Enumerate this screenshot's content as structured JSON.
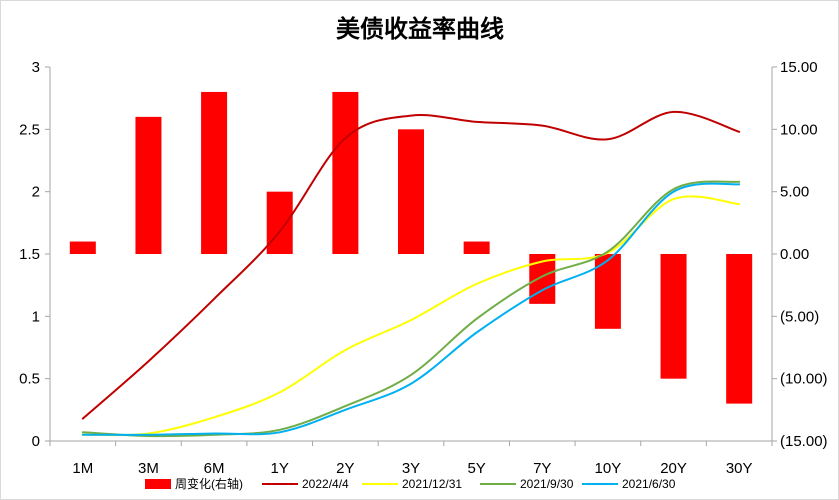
{
  "chart_data": {
    "type": "bar",
    "title": "美债收益率曲线",
    "categories": [
      "1M",
      "3M",
      "6M",
      "1Y",
      "2Y",
      "3Y",
      "5Y",
      "7Y",
      "10Y",
      "20Y",
      "30Y"
    ],
    "y_left": {
      "ylim": [
        0,
        3
      ],
      "ticks": [
        0,
        0.5,
        1,
        1.5,
        2,
        2.5,
        3
      ],
      "tick_labels": [
        "0",
        "0.5",
        "1",
        "1.5",
        "2",
        "2.5",
        "3"
      ]
    },
    "y_right": {
      "ylim": [
        -15,
        15
      ],
      "ticks": [
        15,
        10,
        5,
        0,
        -5,
        -10,
        -15
      ],
      "tick_labels": [
        "15.00",
        "10.00",
        "5.00",
        "0.00",
        "(5.00)",
        "(10.00)",
        "(15.00)"
      ],
      "negative_color": "#FF0000"
    },
    "series": [
      {
        "name": "周变化(右轴)",
        "type": "bar",
        "axis": "right",
        "color": "#FF0000",
        "values": [
          1,
          11,
          13,
          5,
          13,
          10,
          1,
          -4,
          -6,
          -10,
          -12
        ]
      },
      {
        "name": "2022/4/4",
        "type": "line",
        "axis": "left",
        "color": "#C00000",
        "values": [
          0.18,
          0.64,
          1.14,
          1.68,
          2.43,
          2.61,
          2.56,
          2.53,
          2.42,
          2.64,
          2.48
        ]
      },
      {
        "name": "2021/12/31",
        "type": "line",
        "axis": "left",
        "color": "#FFFF00",
        "values": [
          0.05,
          0.06,
          0.19,
          0.39,
          0.73,
          0.97,
          1.26,
          1.44,
          1.51,
          1.94,
          1.9
        ]
      },
      {
        "name": "2021/9/30",
        "type": "line",
        "axis": "left",
        "color": "#70AD47",
        "values": [
          0.07,
          0.04,
          0.05,
          0.09,
          0.28,
          0.53,
          0.98,
          1.32,
          1.52,
          2.02,
          2.08
        ]
      },
      {
        "name": "2021/6/30",
        "type": "line",
        "axis": "left",
        "color": "#00B0F0",
        "values": [
          0.05,
          0.05,
          0.06,
          0.07,
          0.25,
          0.46,
          0.87,
          1.21,
          1.45,
          2.0,
          2.06
        ]
      }
    ],
    "grid": false,
    "legend_position": "bottom"
  }
}
